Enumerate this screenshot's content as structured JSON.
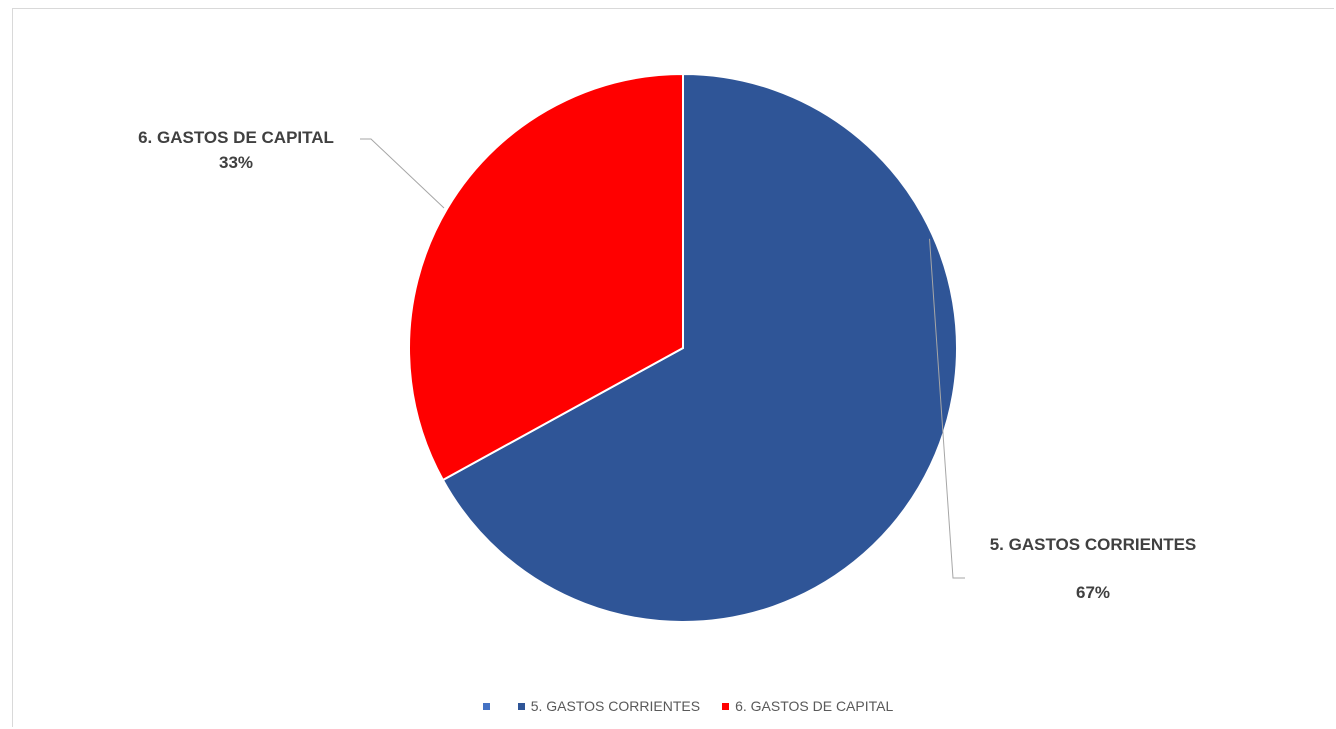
{
  "chart_data": {
    "type": "pie",
    "title": "",
    "slices": [
      {
        "label": "5. GASTOS CORRIENTES",
        "value": 67,
        "value_label": "67%",
        "color": "#2F5597"
      },
      {
        "label": "6. GASTOS DE CAPITAL",
        "value": 33,
        "value_label": "33%",
        "color": "#FF0000"
      }
    ],
    "start_angle_deg": 0,
    "direction": "clockwise",
    "legend": {
      "placement": "bottom",
      "entries": [
        {
          "label": "",
          "color": "#4472C4"
        },
        {
          "label": "5. GASTOS CORRIENTES",
          "color": "#2F5597"
        },
        {
          "label": "6. GASTOS DE CAPITAL",
          "color": "#FF0000"
        }
      ]
    }
  }
}
